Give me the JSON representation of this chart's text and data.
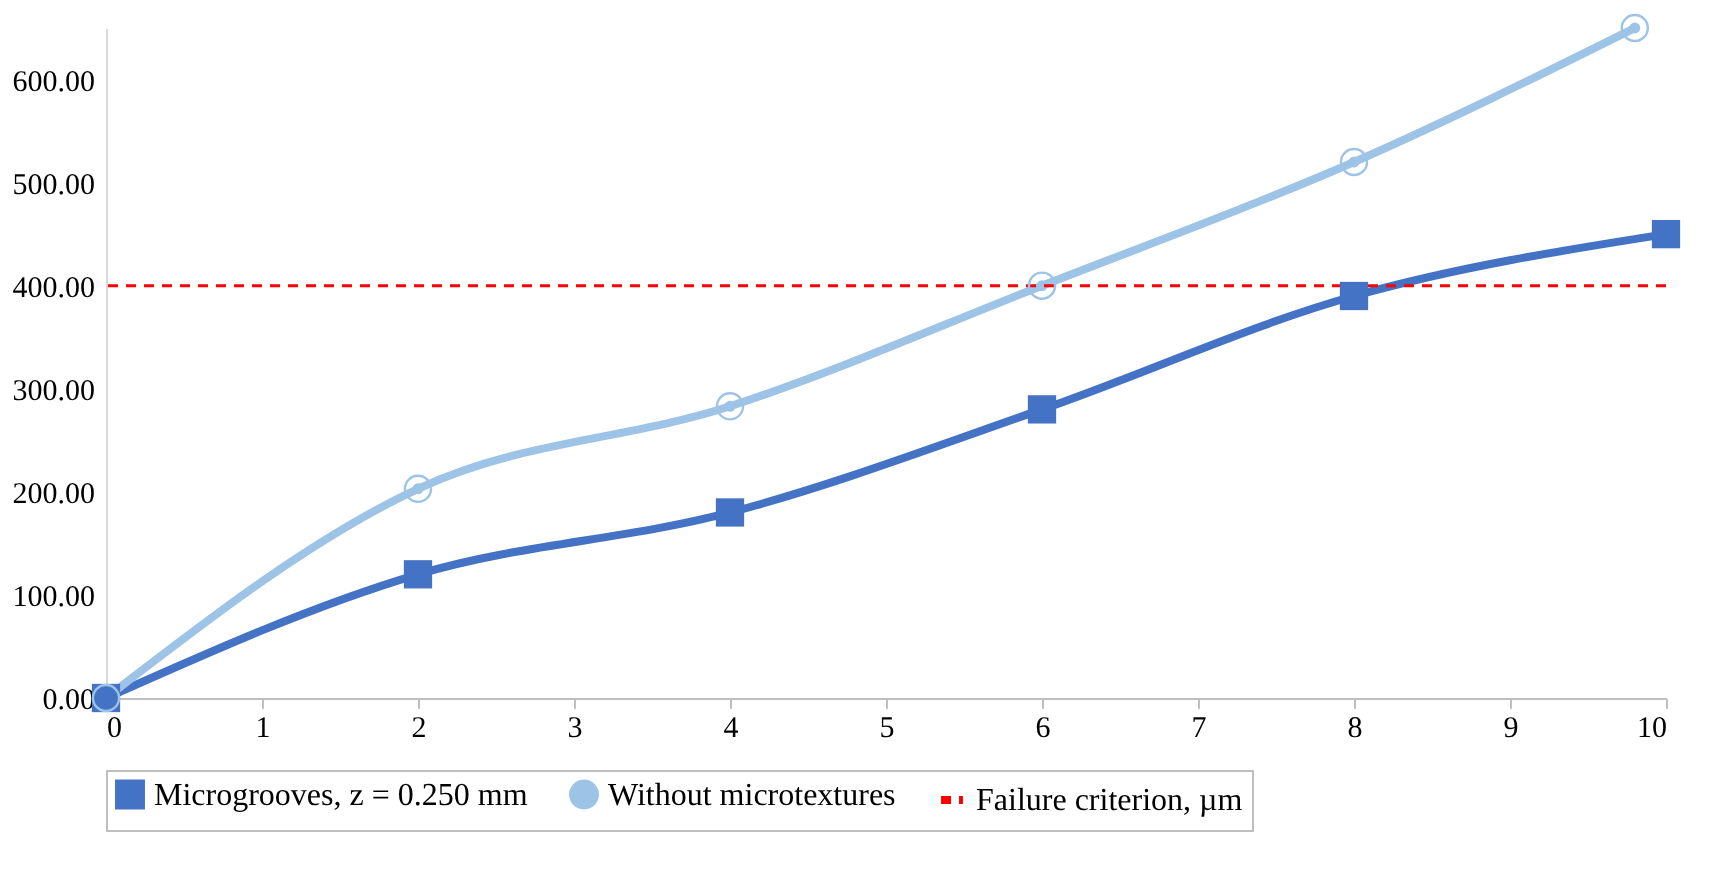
{
  "chart_data": {
    "type": "line",
    "series": [
      {
        "name": "Microgrooves, z = 0.250 mm",
        "color": "#4472c4",
        "marker": "square",
        "x": [
          0,
          2,
          4,
          6,
          8,
          10
        ],
        "values": [
          0,
          120,
          180,
          280,
          390,
          450
        ]
      },
      {
        "name": "Without microtextures",
        "color": "#9dc3e6",
        "marker": "circle",
        "x": [
          0,
          2,
          4,
          6,
          8,
          9.8
        ],
        "values": [
          0,
          203,
          283,
          400,
          520,
          650
        ]
      }
    ],
    "ref_lines": [
      {
        "axis": "y",
        "value": 400,
        "label": "Failure criterion, µm",
        "color": "#ff0000",
        "line_style": "dashed"
      }
    ],
    "xlim": [
      0,
      10
    ],
    "xticks": [
      0,
      1,
      2,
      3,
      4,
      5,
      6,
      7,
      8,
      9,
      10
    ],
    "ylim": [
      0,
      650
    ],
    "yticks": [
      {
        "value": 0,
        "label": "0.00"
      },
      {
        "value": 100,
        "label": "100.00"
      },
      {
        "value": 200,
        "label": "200.00"
      },
      {
        "value": 300,
        "label": "300.00"
      },
      {
        "value": 400,
        "label": "400.00"
      },
      {
        "value": 500,
        "label": "500.00"
      },
      {
        "value": 600,
        "label": "600.00"
      }
    ],
    "grid": false,
    "legend": "bottom",
    "line_style": "solid"
  }
}
